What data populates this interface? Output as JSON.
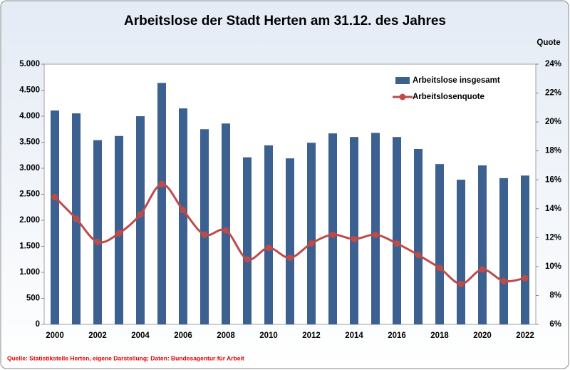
{
  "chart_data": {
    "type": "bar",
    "title": "Arbeitslose der Stadt Herten am 31.12. des Jahres",
    "y2_label": "Quote",
    "source": "Quelle: Statistikstelle Herten, eigene Darstellung; Daten: Bundesagentur für Arbeit",
    "categories": [
      "2000",
      null,
      "2002",
      null,
      "2004",
      null,
      "2006",
      null,
      "2008",
      null,
      "2010",
      null,
      "2012",
      null,
      "2014",
      null,
      "2016",
      null,
      "2018",
      null,
      "2020",
      null,
      "2022"
    ],
    "series": [
      {
        "name": "Arbeitslose insgesamt",
        "type": "bar",
        "axis": "y",
        "color": "#3c6191",
        "values": [
          4110,
          4055,
          3540,
          3620,
          4000,
          4640,
          4150,
          3750,
          3860,
          3210,
          3440,
          3190,
          3490,
          3670,
          3600,
          3680,
          3600,
          3370,
          3080,
          2780,
          3055,
          2810,
          2860
        ]
      },
      {
        "name": "Arbeitslosenquote",
        "type": "line",
        "axis": "y2",
        "color": "#be4b48",
        "values": [
          14.8,
          13.3,
          11.7,
          12.3,
          13.6,
          15.7,
          13.9,
          12.2,
          12.5,
          10.5,
          11.3,
          10.6,
          11.6,
          12.2,
          11.9,
          12.2,
          11.6,
          10.8,
          9.9,
          8.8,
          9.8,
          9.0,
          9.2
        ]
      }
    ],
    "ylim": [
      0,
      5000
    ],
    "yticks": [
      0,
      500,
      {
        "value": 1000,
        "label": "1.000"
      },
      {
        "value": 1500,
        "label": "1.500"
      },
      {
        "value": 2000,
        "label": "2.000"
      },
      {
        "value": 2500,
        "label": "2.500"
      },
      {
        "value": 3000,
        "label": "3.000"
      },
      {
        "value": 3500,
        "label": "3.500"
      },
      {
        "value": 4000,
        "label": "4.000"
      },
      {
        "value": 4500,
        "label": "4.500"
      },
      {
        "value": 5000,
        "label": "5.000"
      }
    ],
    "y2lim": [
      6,
      24
    ],
    "y2ticks": [
      {
        "value": 6,
        "label": "6%"
      },
      {
        "value": 8,
        "label": "8%"
      },
      {
        "value": 10,
        "label": "10%"
      },
      {
        "value": 12,
        "label": "12%"
      },
      {
        "value": 14,
        "label": "14%"
      },
      {
        "value": 16,
        "label": "16%"
      },
      {
        "value": 18,
        "label": "18%"
      },
      {
        "value": 20,
        "label": "20%"
      },
      {
        "value": 22,
        "label": "22%"
      },
      {
        "value": 24,
        "label": "24%"
      }
    ],
    "legend": "upper right",
    "smooth": true
  }
}
